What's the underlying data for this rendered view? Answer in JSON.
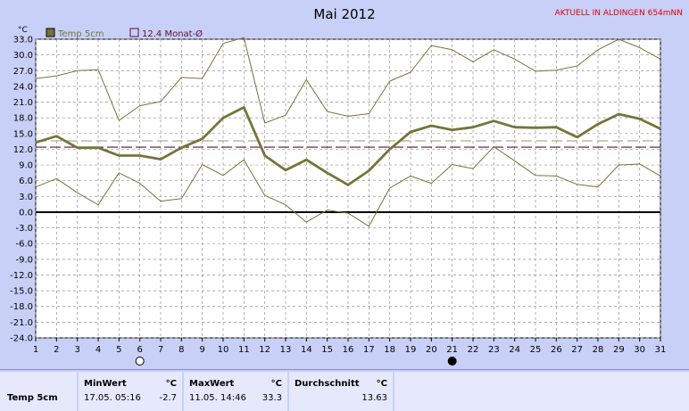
{
  "title": "Mai 2012",
  "station_label": "AKTUELL IN ALDINGEN 654mNN",
  "y_unit": "°C",
  "legend": [
    {
      "label": "Temp 5cm",
      "color": "#76743a",
      "filled": true
    },
    {
      "label": "12.4 Monat-Ø",
      "color": "#5a1030",
      "filled": false
    }
  ],
  "colors": {
    "mean_line": "#76743a",
    "minmax_line": "#76743a",
    "avg_dash": "#5a1030",
    "ref_dash": "#a09070",
    "zero_line": "#000000",
    "grid": "#909090"
  },
  "chart_data": {
    "type": "line",
    "title": "Mai 2012",
    "ylabel": "°C",
    "x": [
      1,
      2,
      3,
      4,
      5,
      6,
      7,
      8,
      9,
      10,
      11,
      12,
      13,
      14,
      15,
      16,
      17,
      18,
      19,
      20,
      21,
      22,
      23,
      24,
      25,
      26,
      27,
      28,
      29,
      30,
      31
    ],
    "ylim": [
      -24,
      33
    ],
    "yticks": [
      "33.0",
      "30.0",
      "27.0",
      "24.0",
      "21.0",
      "18.0",
      "15.0",
      "12.0",
      "9.0",
      "6.0",
      "3.0",
      "0.0",
      "-3.0",
      "-6.0",
      "-9.0",
      "-12.0",
      "-15.0",
      "-18.0",
      "-21.0",
      "-24.0"
    ],
    "series": [
      {
        "name": "Temp 5cm",
        "values": [
          13.3,
          14.5,
          12.3,
          12.3,
          10.8,
          10.8,
          10.1,
          12.3,
          14.0,
          18.0,
          20.0,
          10.8,
          8.0,
          10.0,
          7.5,
          5.2,
          7.9,
          12.0,
          15.3,
          16.5,
          15.7,
          16.2,
          17.4,
          16.2,
          16.1,
          16.2,
          14.3,
          16.8,
          18.7,
          17.8,
          15.9
        ]
      },
      {
        "values": [
          25.5,
          26.0,
          27.0,
          27.2,
          17.5,
          20.3,
          21.1,
          25.7,
          25.5,
          32.2,
          33.3,
          17.0,
          18.5,
          25.3,
          19.2,
          18.3,
          18.8,
          25.0,
          26.7,
          31.8,
          31.0,
          28.7,
          31.0,
          29.2,
          26.9,
          27.1,
          27.9,
          31.0,
          33.0,
          31.4,
          29.2
        ]
      },
      {
        "values": [
          4.8,
          6.4,
          3.7,
          1.4,
          7.5,
          5.5,
          2.1,
          2.6,
          9.1,
          7.0,
          10.0,
          3.2,
          1.4,
          -1.9,
          0.4,
          -0.2,
          -2.7,
          4.6,
          6.9,
          5.5,
          9.1,
          8.3,
          12.5,
          9.8,
          7.0,
          6.9,
          5.3,
          4.8,
          9.0,
          9.2,
          6.9
        ]
      }
    ],
    "month_average": 12.4,
    "reference_line": 13.6,
    "grid": true,
    "legend_position": "top-left"
  },
  "moon_phases": [
    {
      "day": 6,
      "phase": "full-moon"
    },
    {
      "day": 21,
      "phase": "new-moon"
    }
  ],
  "stats": {
    "row_label": "Temp 5cm",
    "min": {
      "header": "MinWert",
      "unit": "°C",
      "time": "17.05.  05:16",
      "value": "-2.7"
    },
    "max": {
      "header": "MaxWert",
      "unit": "°C",
      "time": "11.05.  14:46",
      "value": "33.3"
    },
    "avg": {
      "header": "Durchschnitt",
      "unit": "°C",
      "value": "13.63"
    }
  }
}
